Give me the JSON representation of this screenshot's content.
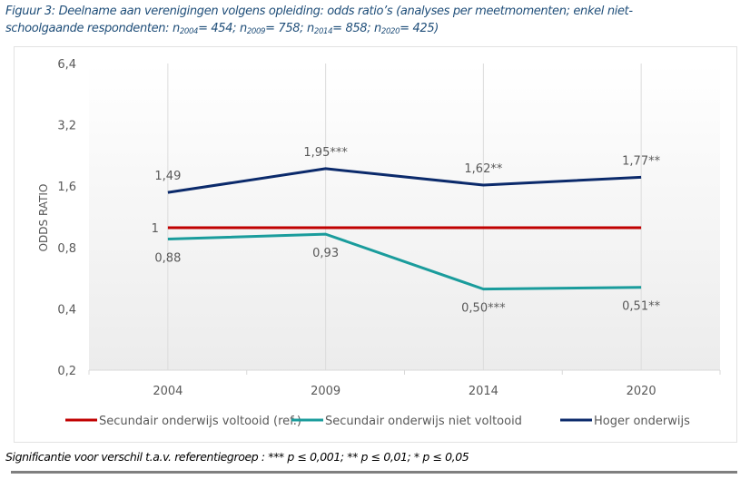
{
  "caption": {
    "line1": "Figuur 3:  Deelname aan verenigingen volgens opleiding: odds ratio’s (analyses per meetmomenten; enkel niet-",
    "line2_prefix": "schoolgaande respondenten: ",
    "n_items": [
      {
        "n": "n",
        "sub": "2004",
        "val": "= 454; "
      },
      {
        "n": "n",
        "sub": "2009",
        "val": "= 758; "
      },
      {
        "n": "n",
        "sub": "2014",
        "val": "= 858; "
      },
      {
        "n": "n",
        "sub": "2020",
        "val": "= 425)"
      }
    ]
  },
  "footnote": "Significantie voor verschil t.a.v. referentiegroep : *** p ≤ 0,001; ** p ≤ 0,01; * p ≤ 0,05",
  "chart_data": {
    "type": "line",
    "title": "",
    "xlabel": "",
    "ylabel": "ODDS RATIO",
    "y_scale": "log2",
    "ylim": [
      0.2,
      6.4
    ],
    "y_ticks": [
      0.2,
      0.4,
      0.8,
      1.6,
      3.2,
      6.4
    ],
    "y_tick_labels": [
      "0,2",
      "0,4",
      "0,8",
      "1,6",
      "3,2",
      "6,4"
    ],
    "categories": [
      "2004",
      "2009",
      "2014",
      "2020"
    ],
    "grid": {
      "vertical": true,
      "horizontal": false
    },
    "legend_position": "bottom",
    "series": [
      {
        "name": "Secundair onderwijs voltooid (ref.)",
        "color": "#c00000",
        "values": [
          1,
          1,
          1,
          1
        ],
        "labels": [
          "1",
          "",
          "",
          ""
        ],
        "label_pos": [
          "left",
          "",
          "",
          ""
        ]
      },
      {
        "name": "Secundair onderwijs niet voltooid",
        "color": "#1a9c9c",
        "values": [
          0.88,
          0.93,
          0.5,
          0.51
        ],
        "labels": [
          "0,88",
          "0,93",
          "0,50***",
          "0,51**"
        ],
        "label_pos": [
          "below",
          "below",
          "below",
          "below"
        ]
      },
      {
        "name": "Hoger onderwijs",
        "color": "#0b2a6b",
        "values": [
          1.49,
          1.95,
          1.62,
          1.77
        ],
        "labels": [
          "1,49",
          "1,95***",
          "1,62**",
          "1,77**"
        ],
        "label_pos": [
          "above",
          "above",
          "above",
          "above"
        ]
      }
    ]
  }
}
